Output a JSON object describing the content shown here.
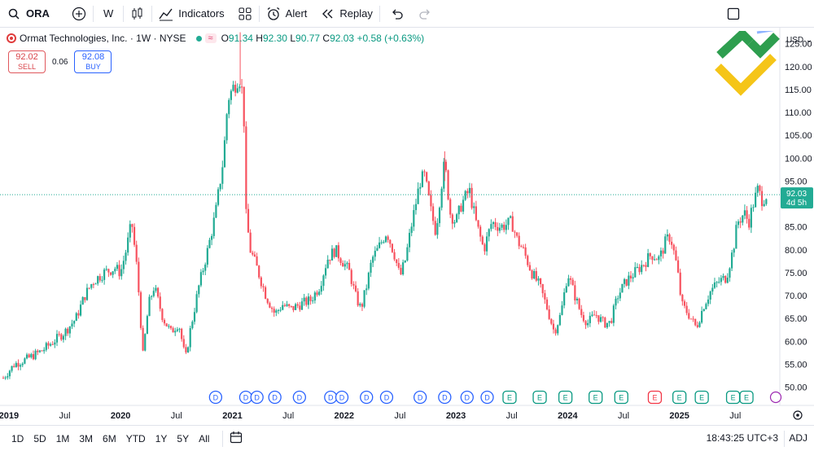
{
  "toolbar": {
    "symbol": "ORA",
    "interval": "W",
    "indicators_label": "Indicators",
    "alert_label": "Alert",
    "replay_label": "Replay",
    "icons": [
      "search-icon",
      "plus-icon",
      "candles-icon",
      "indicators-icon",
      "layouts-icon",
      "alarm-icon",
      "replay-icon",
      "undo-icon",
      "redo-icon",
      "fullscreen-icon"
    ]
  },
  "legend": {
    "title": "Ormat Technologies, Inc. · 1W · NYSE",
    "o_label": "O",
    "o": "91.34",
    "h_label": "H",
    "h": "92.30",
    "l_label": "L",
    "l": "90.77",
    "c_label": "C",
    "c": "92.03",
    "change": "+0.58 (+0.63%)"
  },
  "trade": {
    "sell_price": "92.02",
    "sell_label": "SELL",
    "spread": "0.06",
    "buy_price": "92.08",
    "buy_label": "BUY"
  },
  "colors": {
    "up": "#22ab94",
    "down": "#f7525f",
    "price_line": "#22ab94",
    "logo_green": "#2e9e4f",
    "logo_yellow": "#f5c518"
  },
  "chart_data": {
    "type": "candlestick",
    "currency": "USD",
    "last_price": "92.03",
    "countdown": "4d 5h",
    "y_ticks": [
      "125.00",
      "120.00",
      "115.00",
      "110.00",
      "105.00",
      "100.00",
      "95.00",
      "90.00",
      "85.00",
      "80.00",
      "75.00",
      "70.00",
      "65.00",
      "60.00",
      "55.00",
      "50.00"
    ],
    "ylim": [
      46.0,
      128.5
    ],
    "x_ticks": [
      {
        "label": "2019",
        "t": 2019.0,
        "bold": true
      },
      {
        "label": "Jul",
        "t": 2019.5,
        "bold": false
      },
      {
        "label": "2020",
        "t": 2020.0,
        "bold": true
      },
      {
        "label": "Jul",
        "t": 2020.5,
        "bold": false
      },
      {
        "label": "2021",
        "t": 2021.0,
        "bold": true
      },
      {
        "label": "Jul",
        "t": 2021.5,
        "bold": false
      },
      {
        "label": "2022",
        "t": 2022.0,
        "bold": true
      },
      {
        "label": "Jul",
        "t": 2022.5,
        "bold": false
      },
      {
        "label": "2023",
        "t": 2023.0,
        "bold": true
      },
      {
        "label": "Jul",
        "t": 2023.5,
        "bold": false
      },
      {
        "label": "2024",
        "t": 2024.0,
        "bold": true
      },
      {
        "label": "Jul",
        "t": 2024.5,
        "bold": false
      },
      {
        "label": "2025",
        "t": 2025.0,
        "bold": true
      },
      {
        "label": "Jul",
        "t": 2025.5,
        "bold": false
      }
    ],
    "path": [
      [
        2018.95,
        52
      ],
      [
        2019.05,
        55
      ],
      [
        2019.15,
        56
      ],
      [
        2019.3,
        58
      ],
      [
        2019.4,
        60
      ],
      [
        2019.5,
        62
      ],
      [
        2019.6,
        65
      ],
      [
        2019.68,
        70
      ],
      [
        2019.75,
        73
      ],
      [
        2019.85,
        75
      ],
      [
        2019.95,
        76
      ],
      [
        2020.0,
        75
      ],
      [
        2020.05,
        80
      ],
      [
        2020.1,
        86
      ],
      [
        2020.15,
        75
      ],
      [
        2020.2,
        57
      ],
      [
        2020.25,
        68
      ],
      [
        2020.3,
        72
      ],
      [
        2020.38,
        65
      ],
      [
        2020.45,
        62
      ],
      [
        2020.52,
        64
      ],
      [
        2020.58,
        56
      ],
      [
        2020.62,
        62
      ],
      [
        2020.7,
        72
      ],
      [
        2020.78,
        80
      ],
      [
        2020.85,
        88
      ],
      [
        2020.92,
        100
      ],
      [
        2020.96,
        113
      ],
      [
        2021.02,
        116
      ],
      [
        2021.06,
        118
      ],
      [
        2021.1,
        113
      ],
      [
        2021.12,
        88
      ],
      [
        2021.16,
        80
      ],
      [
        2021.22,
        76
      ],
      [
        2021.3,
        70
      ],
      [
        2021.38,
        66
      ],
      [
        2021.45,
        68
      ],
      [
        2021.52,
        67
      ],
      [
        2021.6,
        68
      ],
      [
        2021.7,
        69
      ],
      [
        2021.78,
        72
      ],
      [
        2021.85,
        78
      ],
      [
        2021.92,
        80
      ],
      [
        2022.0,
        77
      ],
      [
        2022.05,
        75
      ],
      [
        2022.1,
        70
      ],
      [
        2022.15,
        67
      ],
      [
        2022.2,
        72
      ],
      [
        2022.25,
        78
      ],
      [
        2022.3,
        80
      ],
      [
        2022.38,
        84
      ],
      [
        2022.45,
        79
      ],
      [
        2022.5,
        74
      ],
      [
        2022.55,
        78
      ],
      [
        2022.6,
        85
      ],
      [
        2022.68,
        95
      ],
      [
        2022.72,
        96
      ],
      [
        2022.78,
        88
      ],
      [
        2022.82,
        84
      ],
      [
        2022.88,
        96
      ],
      [
        2022.9,
        99
      ],
      [
        2022.95,
        88
      ],
      [
        2023.0,
        86
      ],
      [
        2023.05,
        90
      ],
      [
        2023.12,
        93
      ],
      [
        2023.18,
        86
      ],
      [
        2023.25,
        80
      ],
      [
        2023.32,
        86
      ],
      [
        2023.4,
        85
      ],
      [
        2023.5,
        86
      ],
      [
        2023.55,
        82
      ],
      [
        2023.6,
        80
      ],
      [
        2023.68,
        75
      ],
      [
        2023.75,
        72
      ],
      [
        2023.82,
        67
      ],
      [
        2023.88,
        62
      ],
      [
        2023.94,
        66
      ],
      [
        2024.0,
        75
      ],
      [
        2024.05,
        71
      ],
      [
        2024.12,
        66
      ],
      [
        2024.18,
        64
      ],
      [
        2024.25,
        66
      ],
      [
        2024.32,
        64
      ],
      [
        2024.38,
        64
      ],
      [
        2024.45,
        70
      ],
      [
        2024.52,
        73
      ],
      [
        2024.6,
        75
      ],
      [
        2024.68,
        77
      ],
      [
        2024.75,
        79
      ],
      [
        2024.82,
        78
      ],
      [
        2024.88,
        82
      ],
      [
        2024.92,
        83
      ],
      [
        2024.98,
        76
      ],
      [
        2025.02,
        68
      ],
      [
        2025.08,
        66
      ],
      [
        2025.15,
        63
      ],
      [
        2025.22,
        68
      ],
      [
        2025.28,
        71
      ],
      [
        2025.35,
        73
      ],
      [
        2025.42,
        74
      ],
      [
        2025.48,
        80
      ],
      [
        2025.52,
        86
      ],
      [
        2025.58,
        88
      ],
      [
        2025.62,
        86
      ],
      [
        2025.66,
        90
      ],
      [
        2025.7,
        93
      ],
      [
        2025.74,
        91
      ],
      [
        2025.78,
        92.03
      ]
    ],
    "events": [
      {
        "type": "D",
        "t": 2020.85
      },
      {
        "type": "D",
        "t": 2021.12
      },
      {
        "type": "D",
        "t": 2021.22
      },
      {
        "type": "D",
        "t": 2021.38
      },
      {
        "type": "D",
        "t": 2021.6
      },
      {
        "type": "D",
        "t": 2021.88
      },
      {
        "type": "D",
        "t": 2021.98
      },
      {
        "type": "D",
        "t": 2022.2
      },
      {
        "type": "D",
        "t": 2022.38
      },
      {
        "type": "D",
        "t": 2022.68
      },
      {
        "type": "D",
        "t": 2022.9
      },
      {
        "type": "D",
        "t": 2023.1
      },
      {
        "type": "D",
        "t": 2023.28
      },
      {
        "type": "E",
        "t": 2023.48
      },
      {
        "type": "E",
        "t": 2023.75
      },
      {
        "type": "E",
        "t": 2023.98
      },
      {
        "type": "E",
        "t": 2024.25
      },
      {
        "type": "E",
        "t": 2024.48
      },
      {
        "type": "E",
        "t": 2024.78
      },
      {
        "type": "E",
        "t": 2025.0
      },
      {
        "type": "E",
        "t": 2025.2
      },
      {
        "type": "E",
        "t": 2025.48
      },
      {
        "type": "E",
        "t": 2025.6
      }
    ],
    "events_red_index": 18
  },
  "bottombar": {
    "ranges": [
      "1D",
      "5D",
      "1M",
      "3M",
      "6M",
      "YTD",
      "1Y",
      "5Y",
      "All"
    ],
    "time": "18:43:25 UTC+3",
    "adj": "ADJ"
  }
}
